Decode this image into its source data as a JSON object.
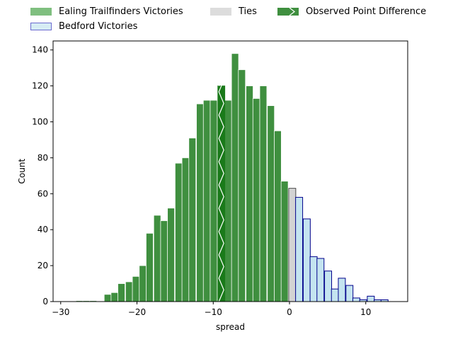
{
  "chart_data": {
    "type": "bar",
    "xlabel": "spread",
    "ylabel": "Count",
    "xlim": [
      -31,
      15.5
    ],
    "ylim": [
      0,
      145
    ],
    "xticks": [
      -30,
      -20,
      -10,
      0,
      10
    ],
    "yticks": [
      0,
      20,
      40,
      60,
      80,
      100,
      120,
      140
    ],
    "xtick_labels": [
      "−30",
      "−20",
      "−10",
      "0",
      "10"
    ],
    "ytick_labels": [
      "0",
      "20",
      "40",
      "60",
      "80",
      "100",
      "120",
      "140"
    ],
    "bin_width": 0.925,
    "legend": {
      "placement": "top, above plot, 3 columns",
      "entries": [
        {
          "key": "ealing",
          "label": "Ealing Trailfinders Victories"
        },
        {
          "key": "bedford",
          "label": "Bedford Victories"
        },
        {
          "key": "ties",
          "label": "Ties"
        },
        {
          "key": "observed",
          "label": "Observed Point Difference"
        }
      ]
    },
    "colors": {
      "ealing_fill": "#3f8f3f",
      "ealing_edge": "#ffffff",
      "bedford_fill": "#c4e4f0",
      "bedford_edge": "#00008b",
      "ties_fill": "#d3d3d3",
      "ties_edge": "#222222",
      "observed_fill": "#1a7a1a",
      "observed_hatch": "#ffffff"
    },
    "series": [
      {
        "key": "ealing",
        "name": "Ealing Trailfinders Victories",
        "bins": [
          {
            "x": -28.0,
            "count": 0.5
          },
          {
            "x": -27.1,
            "count": 0.5
          },
          {
            "x": -26.2,
            "count": 0.5
          },
          {
            "x": -24.3,
            "count": 4
          },
          {
            "x": -23.4,
            "count": 5
          },
          {
            "x": -22.5,
            "count": 10
          },
          {
            "x": -21.5,
            "count": 11
          },
          {
            "x": -20.6,
            "count": 14
          },
          {
            "x": -19.7,
            "count": 20
          },
          {
            "x": -18.8,
            "count": 38
          },
          {
            "x": -17.8,
            "count": 48
          },
          {
            "x": -16.9,
            "count": 45
          },
          {
            "x": -16.0,
            "count": 52
          },
          {
            "x": -15.0,
            "count": 77
          },
          {
            "x": -14.1,
            "count": 80
          },
          {
            "x": -13.2,
            "count": 91
          },
          {
            "x": -12.2,
            "count": 110
          },
          {
            "x": -11.3,
            "count": 112
          },
          {
            "x": -10.4,
            "count": 112
          },
          {
            "x": -8.5,
            "count": 112
          },
          {
            "x": -7.6,
            "count": 138
          },
          {
            "x": -6.7,
            "count": 129
          },
          {
            "x": -5.7,
            "count": 120
          },
          {
            "x": -4.8,
            "count": 113
          },
          {
            "x": -3.9,
            "count": 120
          },
          {
            "x": -2.9,
            "count": 109
          },
          {
            "x": -2.0,
            "count": 95
          },
          {
            "x": -1.1,
            "count": 67
          }
        ]
      },
      {
        "key": "observed",
        "name": "Observed Point Difference",
        "bins": [
          {
            "x": -9.4,
            "count": 120
          }
        ]
      },
      {
        "key": "ties",
        "name": "Ties",
        "bins": [
          {
            "x": -0.1,
            "count": 63
          }
        ]
      },
      {
        "key": "bedford",
        "name": "Bedford Victories",
        "bins": [
          {
            "x": 0.8,
            "count": 58
          },
          {
            "x": 1.8,
            "count": 46
          },
          {
            "x": 2.7,
            "count": 25
          },
          {
            "x": 3.6,
            "count": 24
          },
          {
            "x": 4.6,
            "count": 17
          },
          {
            "x": 5.5,
            "count": 7
          },
          {
            "x": 6.4,
            "count": 13
          },
          {
            "x": 7.4,
            "count": 9
          },
          {
            "x": 8.3,
            "count": 2
          },
          {
            "x": 9.2,
            "count": 1
          },
          {
            "x": 10.2,
            "count": 3
          },
          {
            "x": 11.1,
            "count": 1
          },
          {
            "x": 12.0,
            "count": 1
          }
        ]
      }
    ]
  }
}
